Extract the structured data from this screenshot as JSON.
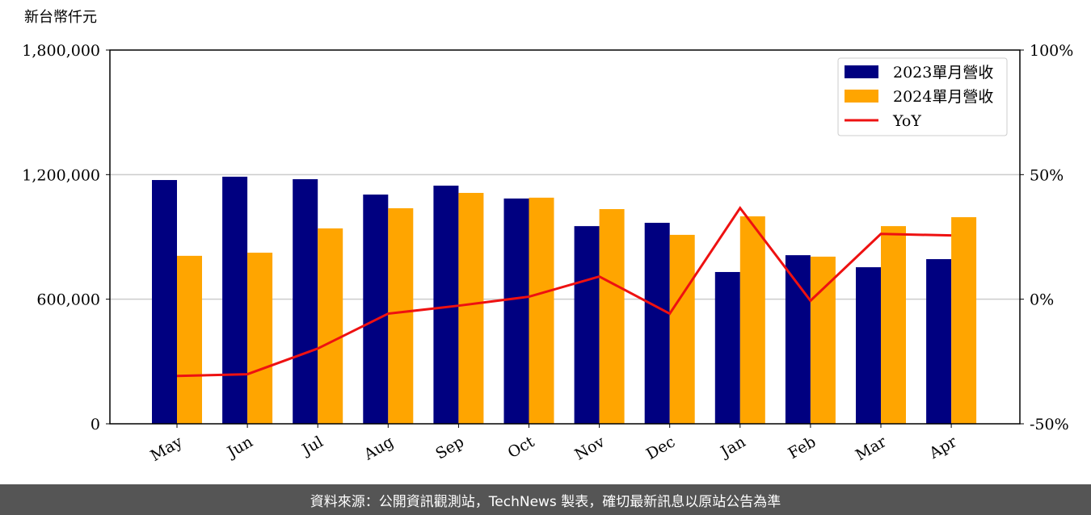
{
  "chart_data": {
    "type": "bar",
    "ylabel": "新台幣仟元",
    "categories": [
      "May",
      "Jun",
      "Jul",
      "Aug",
      "Sep",
      "Oct",
      "Nov",
      "Dec",
      "Jan",
      "Feb",
      "Mar",
      "Apr"
    ],
    "series": [
      {
        "name": "2023單月營收",
        "color": "#000080",
        "values": [
          1174000,
          1190000,
          1178000,
          1104000,
          1147000,
          1085000,
          952000,
          968000,
          731000,
          812000,
          754000,
          793000
        ]
      },
      {
        "name": "2024單月營收",
        "color": "#ffa500",
        "values": [
          809000,
          824000,
          941000,
          1038000,
          1112000,
          1089000,
          1034000,
          910000,
          999000,
          805000,
          952000,
          995000
        ]
      },
      {
        "name": "YoY",
        "type": "line",
        "axis": "y2",
        "color": "#ee1111",
        "values": [
          -30.8,
          -30.1,
          -19.8,
          -5.8,
          -2.6,
          1.0,
          9.1,
          -5.8,
          36.6,
          -0.6,
          26.2,
          25.6
        ]
      }
    ],
    "ylim": [
      0,
      1800000
    ],
    "yticks": [
      {
        "value": 0,
        "label": "0"
      },
      {
        "value": 600000,
        "label": "600,000"
      },
      {
        "value": 1200000,
        "label": "1,200,000"
      },
      {
        "value": 1800000,
        "label": "1,800,000"
      }
    ],
    "y2lim": [
      -50,
      100
    ],
    "y2ticks": [
      {
        "value": -50,
        "label": "-50%"
      },
      {
        "value": 0,
        "label": "0%"
      },
      {
        "value": 50,
        "label": "50%"
      },
      {
        "value": 100,
        "label": "100%"
      }
    ],
    "grid": true,
    "legend": "upper right",
    "source": "資料來源：公開資訊觀測站，TechNews 製表，確切最新訊息以原站公告為準"
  }
}
